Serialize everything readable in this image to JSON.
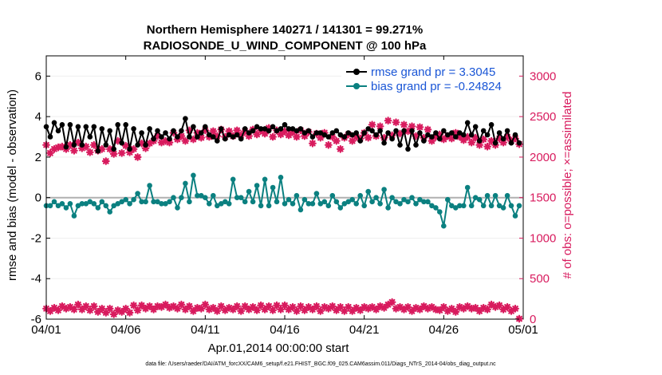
{
  "chart_data": {
    "type": "line",
    "title": "Northern Hemisphere 140271 / 141301 = 99.271%",
    "subtitle": "RADIOSONDE_U_WIND_COMPONENT @ 100 hPa",
    "xlabel": "Apr.01,2014 00:00:00 start",
    "ylabel_left": "rmse and bias (model - observation)",
    "ylabel_right": "# of obs: o=possible; ×=assimilated",
    "xlim": [
      0,
      30
    ],
    "ylim_left": [
      -6,
      7
    ],
    "ylim_right": [
      0,
      3250
    ],
    "x_ticks": [
      0,
      5,
      10,
      15,
      20,
      25,
      30
    ],
    "x_tick_labels": [
      "04/01",
      "04/06",
      "04/11",
      "04/16",
      "04/21",
      "04/26",
      "05/01"
    ],
    "y_left_ticks": [
      6,
      4,
      2,
      0,
      -2,
      -4,
      -6
    ],
    "y_left_tick_labels": [
      "6",
      "4",
      "2",
      "0",
      "-2",
      "-4",
      "-6"
    ],
    "y_right_ticks": [
      3000,
      2500,
      2000,
      1500,
      1000,
      500,
      0
    ],
    "y_right_tick_labels": [
      "3000",
      "2500",
      "2000",
      "1500",
      "1000",
      "500",
      "0"
    ],
    "colors": {
      "rmse": "#000000",
      "bias": "#0b8080",
      "obs": "#d81b5e",
      "zero_line": "#b0b0b0",
      "legend_text": "#1a56d6",
      "right_axis": "#d81b5e"
    },
    "legend": {
      "placement": "top-right",
      "entries": [
        "rmse grand pr = 3.3045",
        "bias grand pr = -0.24824"
      ]
    },
    "series": [
      {
        "name": "rmse",
        "axis": "left",
        "x": [
          0.0,
          0.25,
          0.5,
          0.75,
          1.0,
          1.25,
          1.5,
          1.75,
          2.0,
          2.25,
          2.5,
          2.75,
          3.0,
          3.25,
          3.5,
          3.75,
          4.0,
          4.25,
          4.5,
          4.75,
          5.0,
          5.25,
          5.5,
          5.75,
          6.0,
          6.25,
          6.5,
          6.75,
          7.0,
          7.25,
          7.5,
          7.75,
          8.0,
          8.25,
          8.5,
          8.75,
          9.0,
          9.25,
          9.5,
          9.75,
          10.0,
          10.25,
          10.5,
          10.75,
          11.0,
          11.25,
          11.5,
          11.75,
          12.0,
          12.25,
          12.5,
          12.75,
          13.0,
          13.25,
          13.5,
          13.75,
          14.0,
          14.25,
          14.5,
          14.75,
          15.0,
          15.25,
          15.5,
          15.75,
          16.0,
          16.25,
          16.5,
          16.75,
          17.0,
          17.25,
          17.5,
          17.75,
          18.0,
          18.25,
          18.5,
          18.75,
          19.0,
          19.25,
          19.5,
          19.75,
          20.0,
          20.25,
          20.5,
          20.75,
          21.0,
          21.25,
          21.5,
          21.75,
          22.0,
          22.25,
          22.5,
          22.75,
          23.0,
          23.25,
          23.5,
          23.75,
          24.0,
          24.25,
          24.5,
          24.75,
          25.0,
          25.25,
          25.5,
          25.75,
          26.0,
          26.25,
          26.5,
          26.75,
          27.0,
          27.25,
          27.5,
          27.75,
          28.0,
          28.25,
          28.5,
          28.75,
          29.0,
          29.25,
          29.5,
          29.75
        ],
        "values": [
          3.5,
          3.0,
          3.7,
          3.3,
          3.6,
          2.5,
          3.6,
          2.6,
          3.5,
          2.6,
          3.5,
          3.0,
          3.5,
          2.3,
          3.4,
          2.6,
          3.3,
          2.4,
          3.6,
          2.7,
          3.6,
          2.4,
          3.4,
          2.6,
          3.2,
          2.6,
          3.4,
          2.9,
          3.3,
          3.0,
          3.2,
          2.9,
          3.3,
          3.0,
          3.3,
          3.9,
          3.0,
          3.5,
          3.0,
          3.2,
          3.5,
          3.1,
          3.0,
          2.8,
          3.4,
          2.9,
          3.1,
          3.0,
          3.1,
          2.9,
          3.4,
          3.2,
          3.3,
          3.5,
          3.4,
          3.4,
          3.3,
          3.5,
          3.3,
          3.4,
          3.6,
          3.4,
          3.4,
          3.3,
          3.4,
          3.2,
          3.3,
          3.0,
          3.2,
          3.2,
          3.1,
          3.0,
          3.2,
          3.3,
          3.1,
          3.0,
          3.2,
          3.1,
          3.2,
          2.8,
          3.2,
          3.4,
          3.3,
          3.1,
          3.3,
          2.7,
          3.2,
          2.9,
          3.3,
          2.6,
          3.3,
          2.4,
          3.3,
          2.6,
          3.2,
          2.8,
          3.1,
          3.0,
          3.2,
          2.9,
          3.3,
          3.1,
          3.2,
          3.0,
          3.2,
          3.1,
          3.7,
          3.1,
          3.5,
          2.8,
          3.3,
          3.1,
          3.6,
          2.7,
          3.2,
          2.9,
          3.3,
          2.7,
          3.1,
          2.7
        ]
      },
      {
        "name": "bias",
        "axis": "left",
        "x": [
          0.0,
          0.25,
          0.5,
          0.75,
          1.0,
          1.25,
          1.5,
          1.75,
          2.0,
          2.25,
          2.5,
          2.75,
          3.0,
          3.25,
          3.5,
          3.75,
          4.0,
          4.25,
          4.5,
          4.75,
          5.0,
          5.25,
          5.5,
          5.75,
          6.0,
          6.25,
          6.5,
          6.75,
          7.0,
          7.25,
          7.5,
          7.75,
          8.0,
          8.25,
          8.5,
          8.75,
          9.0,
          9.25,
          9.5,
          9.75,
          10.0,
          10.25,
          10.5,
          10.75,
          11.0,
          11.25,
          11.5,
          11.75,
          12.0,
          12.25,
          12.5,
          12.75,
          13.0,
          13.25,
          13.5,
          13.75,
          14.0,
          14.25,
          14.5,
          14.75,
          15.0,
          15.25,
          15.5,
          15.75,
          16.0,
          16.25,
          16.5,
          16.75,
          17.0,
          17.25,
          17.5,
          17.75,
          18.0,
          18.25,
          18.5,
          18.75,
          19.0,
          19.25,
          19.5,
          19.75,
          20.0,
          20.25,
          20.5,
          20.75,
          21.0,
          21.25,
          21.5,
          21.75,
          22.0,
          22.25,
          22.5,
          22.75,
          23.0,
          23.25,
          23.5,
          23.75,
          24.0,
          24.25,
          24.5,
          24.75,
          25.0,
          25.25,
          25.5,
          25.75,
          26.0,
          26.25,
          26.5,
          26.75,
          27.0,
          27.25,
          27.5,
          27.75,
          28.0,
          28.25,
          28.5,
          28.75,
          29.0,
          29.25,
          29.5,
          29.75
        ],
        "values": [
          -0.4,
          -0.4,
          -0.2,
          -0.4,
          -0.3,
          -0.5,
          -0.3,
          -0.9,
          -0.4,
          -0.3,
          -0.3,
          -0.2,
          -0.3,
          -0.5,
          -0.2,
          -0.4,
          -0.7,
          -0.4,
          -0.3,
          -0.2,
          -0.1,
          -0.3,
          -0.1,
          0.2,
          -0.2,
          -0.2,
          0.6,
          -0.2,
          -0.2,
          -0.3,
          -0.3,
          -0.2,
          0.0,
          -0.5,
          0.0,
          0.7,
          -0.2,
          1.1,
          0.1,
          0.1,
          0.0,
          -0.3,
          0.1,
          -0.4,
          -0.3,
          -0.2,
          -0.3,
          0.9,
          0.0,
          0.0,
          -0.2,
          0.3,
          -0.2,
          0.6,
          -0.4,
          0.9,
          -0.4,
          0.5,
          -0.2,
          1.0,
          -0.3,
          -0.1,
          -0.3,
          0.1,
          -0.6,
          -0.1,
          -0.3,
          -0.3,
          0.2,
          -0.3,
          -0.2,
          -0.4,
          0.1,
          -0.2,
          -0.5,
          -0.3,
          -0.2,
          -0.1,
          -0.3,
          0.1,
          -0.4,
          0.3,
          -0.2,
          0.0,
          -0.3,
          0.4,
          -0.5,
          0.0,
          -0.2,
          -0.3,
          -0.1,
          -0.2,
          0.0,
          -0.3,
          -0.1,
          -0.2,
          -0.2,
          -0.4,
          -0.5,
          -0.7,
          -1.4,
          -0.1,
          -0.4,
          -0.5,
          -0.4,
          -0.4,
          0.5,
          -0.4,
          0.0,
          -0.1,
          -0.4,
          0.1,
          -0.4,
          0.1,
          -0.4,
          -0.5,
          0.1,
          -0.4,
          -0.9,
          -0.4
        ]
      },
      {
        "name": "obs_assimilated",
        "axis": "right",
        "x": [
          0.0,
          0.25,
          0.5,
          0.75,
          1.0,
          1.25,
          1.5,
          1.75,
          2.0,
          2.25,
          2.5,
          2.75,
          3.0,
          3.25,
          3.5,
          3.75,
          4.0,
          4.25,
          4.5,
          4.75,
          5.0,
          5.25,
          5.5,
          5.75,
          6.0,
          6.25,
          6.5,
          6.75,
          7.0,
          7.25,
          7.5,
          7.75,
          8.0,
          8.25,
          8.5,
          8.75,
          9.0,
          9.25,
          9.5,
          9.75,
          10.0,
          10.25,
          10.5,
          10.75,
          11.0,
          11.25,
          11.5,
          11.75,
          12.0,
          12.25,
          12.5,
          12.75,
          13.0,
          13.25,
          13.5,
          13.75,
          14.0,
          14.25,
          14.5,
          14.75,
          15.0,
          15.25,
          15.5,
          15.75,
          16.0,
          16.25,
          16.5,
          16.75,
          17.0,
          17.25,
          17.5,
          17.75,
          18.0,
          18.25,
          18.5,
          18.75,
          19.0,
          19.25,
          19.5,
          19.75,
          20.0,
          20.25,
          20.5,
          20.75,
          21.0,
          21.25,
          21.5,
          21.75,
          22.0,
          22.25,
          22.5,
          22.75,
          23.0,
          23.25,
          23.5,
          23.75,
          24.0,
          24.25,
          24.5,
          24.75,
          25.0,
          25.25,
          25.5,
          25.75,
          26.0,
          26.25,
          26.5,
          26.75,
          27.0,
          27.25,
          27.5,
          27.75,
          28.0,
          28.25,
          28.5,
          28.75,
          29.0,
          29.25,
          29.5,
          29.75
        ],
        "values": [
          2150,
          2050,
          2100,
          2120,
          2130,
          2100,
          2150,
          2080,
          2180,
          2110,
          2130,
          2060,
          2150,
          2080,
          2100,
          1950,
          2100,
          2040,
          2200,
          2050,
          2140,
          2060,
          2100,
          2000,
          2170,
          2110,
          2170,
          2200,
          2260,
          2180,
          2200,
          2180,
          2300,
          2220,
          2260,
          2200,
          2330,
          2220,
          2300,
          2240,
          2330,
          2250,
          2320,
          2260,
          2340,
          2250,
          2320,
          2260,
          2330,
          2270,
          2320,
          2260,
          2340,
          2280,
          2330,
          2290,
          2360,
          2250,
          2330,
          2280,
          2320,
          2270,
          2310,
          2250,
          2330,
          2260,
          2310,
          2170,
          2290,
          2240,
          2300,
          2150,
          2250,
          2200,
          2100,
          2240,
          2280,
          2200,
          2250,
          2230,
          2300,
          2240,
          2400,
          2260,
          2380,
          2240,
          2450,
          2270,
          2430,
          2290,
          2400,
          2320,
          2380,
          2260,
          2370,
          2240,
          2340,
          2200,
          2250,
          2280,
          2220,
          2260,
          2230,
          2300,
          2250,
          2210,
          2250,
          2180,
          2240,
          2150,
          2220,
          2130,
          2200,
          2150,
          2230,
          2180,
          2250,
          2200,
          2230,
          2160
        ]
      },
      {
        "name": "obs_possible",
        "axis": "right",
        "x": [
          0.0,
          0.25,
          0.5,
          0.75,
          1.0,
          1.25,
          1.5,
          1.75,
          2.0,
          2.25,
          2.5,
          2.75,
          3.0,
          3.25,
          3.5,
          3.75,
          4.0,
          4.25,
          4.5,
          4.75,
          5.0,
          5.25,
          5.5,
          5.75,
          6.0,
          6.25,
          6.5,
          6.75,
          7.0,
          7.25,
          7.5,
          7.75,
          8.0,
          8.25,
          8.5,
          8.75,
          9.0,
          9.25,
          9.5,
          9.75,
          10.0,
          10.25,
          10.5,
          10.75,
          11.0,
          11.25,
          11.5,
          11.75,
          12.0,
          12.25,
          12.5,
          12.75,
          13.0,
          13.25,
          13.5,
          13.75,
          14.0,
          14.25,
          14.5,
          14.75,
          15.0,
          15.25,
          15.5,
          15.75,
          16.0,
          16.25,
          16.5,
          16.75,
          17.0,
          17.25,
          17.5,
          17.75,
          18.0,
          18.25,
          18.5,
          18.75,
          19.0,
          19.25,
          19.5,
          19.75,
          20.0,
          20.25,
          20.5,
          20.75,
          21.0,
          21.25,
          21.5,
          21.75,
          22.0,
          22.25,
          22.5,
          22.75,
          23.0,
          23.25,
          23.5,
          23.75,
          24.0,
          24.25,
          24.5,
          24.75,
          25.0,
          25.25,
          25.5,
          25.75,
          26.0,
          26.25,
          26.5,
          26.75,
          27.0,
          27.25,
          27.5,
          27.75,
          28.0,
          28.25,
          28.5,
          28.75,
          29.0,
          29.25,
          29.5,
          29.75
        ],
        "values": [
          130,
          100,
          140,
          110,
          160,
          130,
          150,
          120,
          180,
          120,
          160,
          110,
          160,
          90,
          130,
          80,
          130,
          60,
          110,
          90,
          130,
          80,
          170,
          110,
          170,
          130,
          160,
          120,
          160,
          150,
          180,
          140,
          160,
          130,
          180,
          120,
          160,
          100,
          140,
          130,
          180,
          120,
          140,
          100,
          160,
          110,
          140,
          120,
          160,
          100,
          160,
          120,
          150,
          110,
          170,
          120,
          160,
          110,
          170,
          120,
          170,
          120,
          150,
          100,
          160,
          110,
          150,
          120,
          160,
          100,
          150,
          130,
          160,
          110,
          150,
          100,
          150,
          100,
          140,
          110,
          150,
          130,
          150,
          120,
          160,
          140,
          180,
          210,
          130,
          150,
          120,
          150,
          100,
          140,
          120,
          160,
          130,
          150,
          120,
          110,
          150,
          100,
          130,
          90,
          150,
          130,
          160,
          130,
          140,
          100,
          140,
          120,
          180,
          150,
          170,
          120,
          150,
          100,
          130,
          5
        ]
      }
    ],
    "footer": "data file: /Users/raeder/DAI/ATM_forcXX/CAM6_setup/f.e21.FHIST_BGC.f09_025.CAM6assim.011/Diags_NTrS_2014-04/obs_diag_output.nc"
  }
}
